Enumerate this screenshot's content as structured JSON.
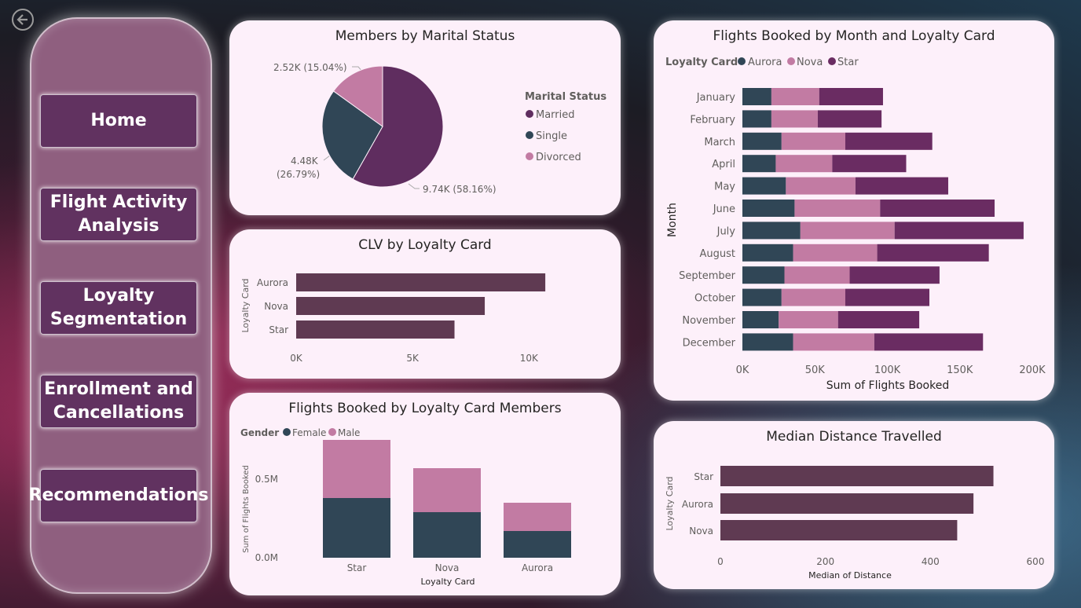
{
  "nav": {
    "items": [
      {
        "label": "Home"
      },
      {
        "label": "Flight Activity Analysis"
      },
      {
        "label": "Loyalty Segmentation"
      },
      {
        "label": "Enrollment and Cancellations"
      },
      {
        "label": "Recommendations"
      }
    ]
  },
  "colors": {
    "married": "#5f2d5f",
    "single": "#304656",
    "divorced": "#c27ba3",
    "aurora": "#304656",
    "nova": "#c27ba3",
    "star": "#6a2c62",
    "clv_bar": "#5f3a52",
    "female": "#304656",
    "male": "#c27ba3"
  },
  "charts": {
    "marital": {
      "title": "Members by Marital Status",
      "legend_title": "Marital Status",
      "chart_data": {
        "type": "pie",
        "slices": [
          {
            "name": "Married",
            "value": 9.74,
            "label": "9.74K (58.16%)"
          },
          {
            "name": "Single",
            "value": 4.48,
            "label_line1": "4.48K",
            "label_line2": "(26.79%)"
          },
          {
            "name": "Divorced",
            "value": 2.52,
            "label": "2.52K (15.04%)"
          }
        ]
      }
    },
    "clv": {
      "title": "CLV by Loyalty Card",
      "ylabel": "Loyalty Card",
      "chart_data": {
        "type": "bar",
        "categories": [
          "Aurora",
          "Nova",
          "Star"
        ],
        "values": [
          10700,
          8100,
          6800
        ],
        "xlim": [
          0,
          11000
        ],
        "ticks": [
          {
            "v": 0,
            "label": "0K"
          },
          {
            "v": 5000,
            "label": "5K"
          },
          {
            "v": 10000,
            "label": "10K"
          }
        ]
      }
    },
    "flights_gender": {
      "title": "Flights Booked by Loyalty Card Members",
      "legend_title": "Gender",
      "xlabel": "Loyalty Card",
      "ylabel": "Sum of Flights Booked",
      "chart_data": {
        "type": "bar",
        "categories": [
          "Star",
          "Nova",
          "Aurora"
        ],
        "series": [
          {
            "name": "Female",
            "values": [
              0.38,
              0.29,
              0.17
            ]
          },
          {
            "name": "Male",
            "values": [
              0.37,
              0.28,
              0.18
            ]
          }
        ],
        "ylim": [
          0,
          0.8
        ],
        "ticks": [
          {
            "v": 0,
            "label": "0.0M"
          },
          {
            "v": 0.5,
            "label": "0.5M"
          }
        ]
      }
    },
    "monthly": {
      "title": "Flights Booked by Month and Loyalty Card",
      "legend_title": "Loyalty Card",
      "xlabel": "Sum of Flights Booked",
      "ylabel": "Month",
      "chart_data": {
        "type": "bar",
        "categories": [
          "January",
          "February",
          "March",
          "April",
          "May",
          "June",
          "July",
          "August",
          "September",
          "October",
          "November",
          "December"
        ],
        "series": [
          {
            "name": "Aurora",
            "values": [
              20,
              20,
              27,
              23,
              30,
              36,
              40,
              35,
              29,
              27,
              25,
              35
            ]
          },
          {
            "name": "Nova",
            "values": [
              33,
              32,
              44,
              39,
              48,
              59,
              65,
              58,
              45,
              44,
              41,
              56
            ]
          },
          {
            "name": "Star",
            "values": [
              44,
              44,
              60,
              51,
              64,
              79,
              89,
              77,
              62,
              58,
              56,
              75
            ]
          }
        ],
        "units": "K",
        "xlim": [
          0,
          200
        ],
        "ticks": [
          {
            "v": 0,
            "label": "0K"
          },
          {
            "v": 50,
            "label": "50K"
          },
          {
            "v": 100,
            "label": "100K"
          },
          {
            "v": 150,
            "label": "150K"
          },
          {
            "v": 200,
            "label": "200K"
          }
        ]
      }
    },
    "distance": {
      "title": "Median Distance Travelled",
      "xlabel": "Median of Distance",
      "ylabel": "Loyalty Card",
      "chart_data": {
        "type": "bar",
        "categories": [
          "Star",
          "Aurora",
          "Nova"
        ],
        "values": [
          520,
          482,
          451
        ],
        "xlim": [
          0,
          600
        ],
        "ticks": [
          {
            "v": 0,
            "label": "0"
          },
          {
            "v": 200,
            "label": "200"
          },
          {
            "v": 400,
            "label": "400"
          },
          {
            "v": 600,
            "label": "600"
          }
        ]
      }
    }
  }
}
